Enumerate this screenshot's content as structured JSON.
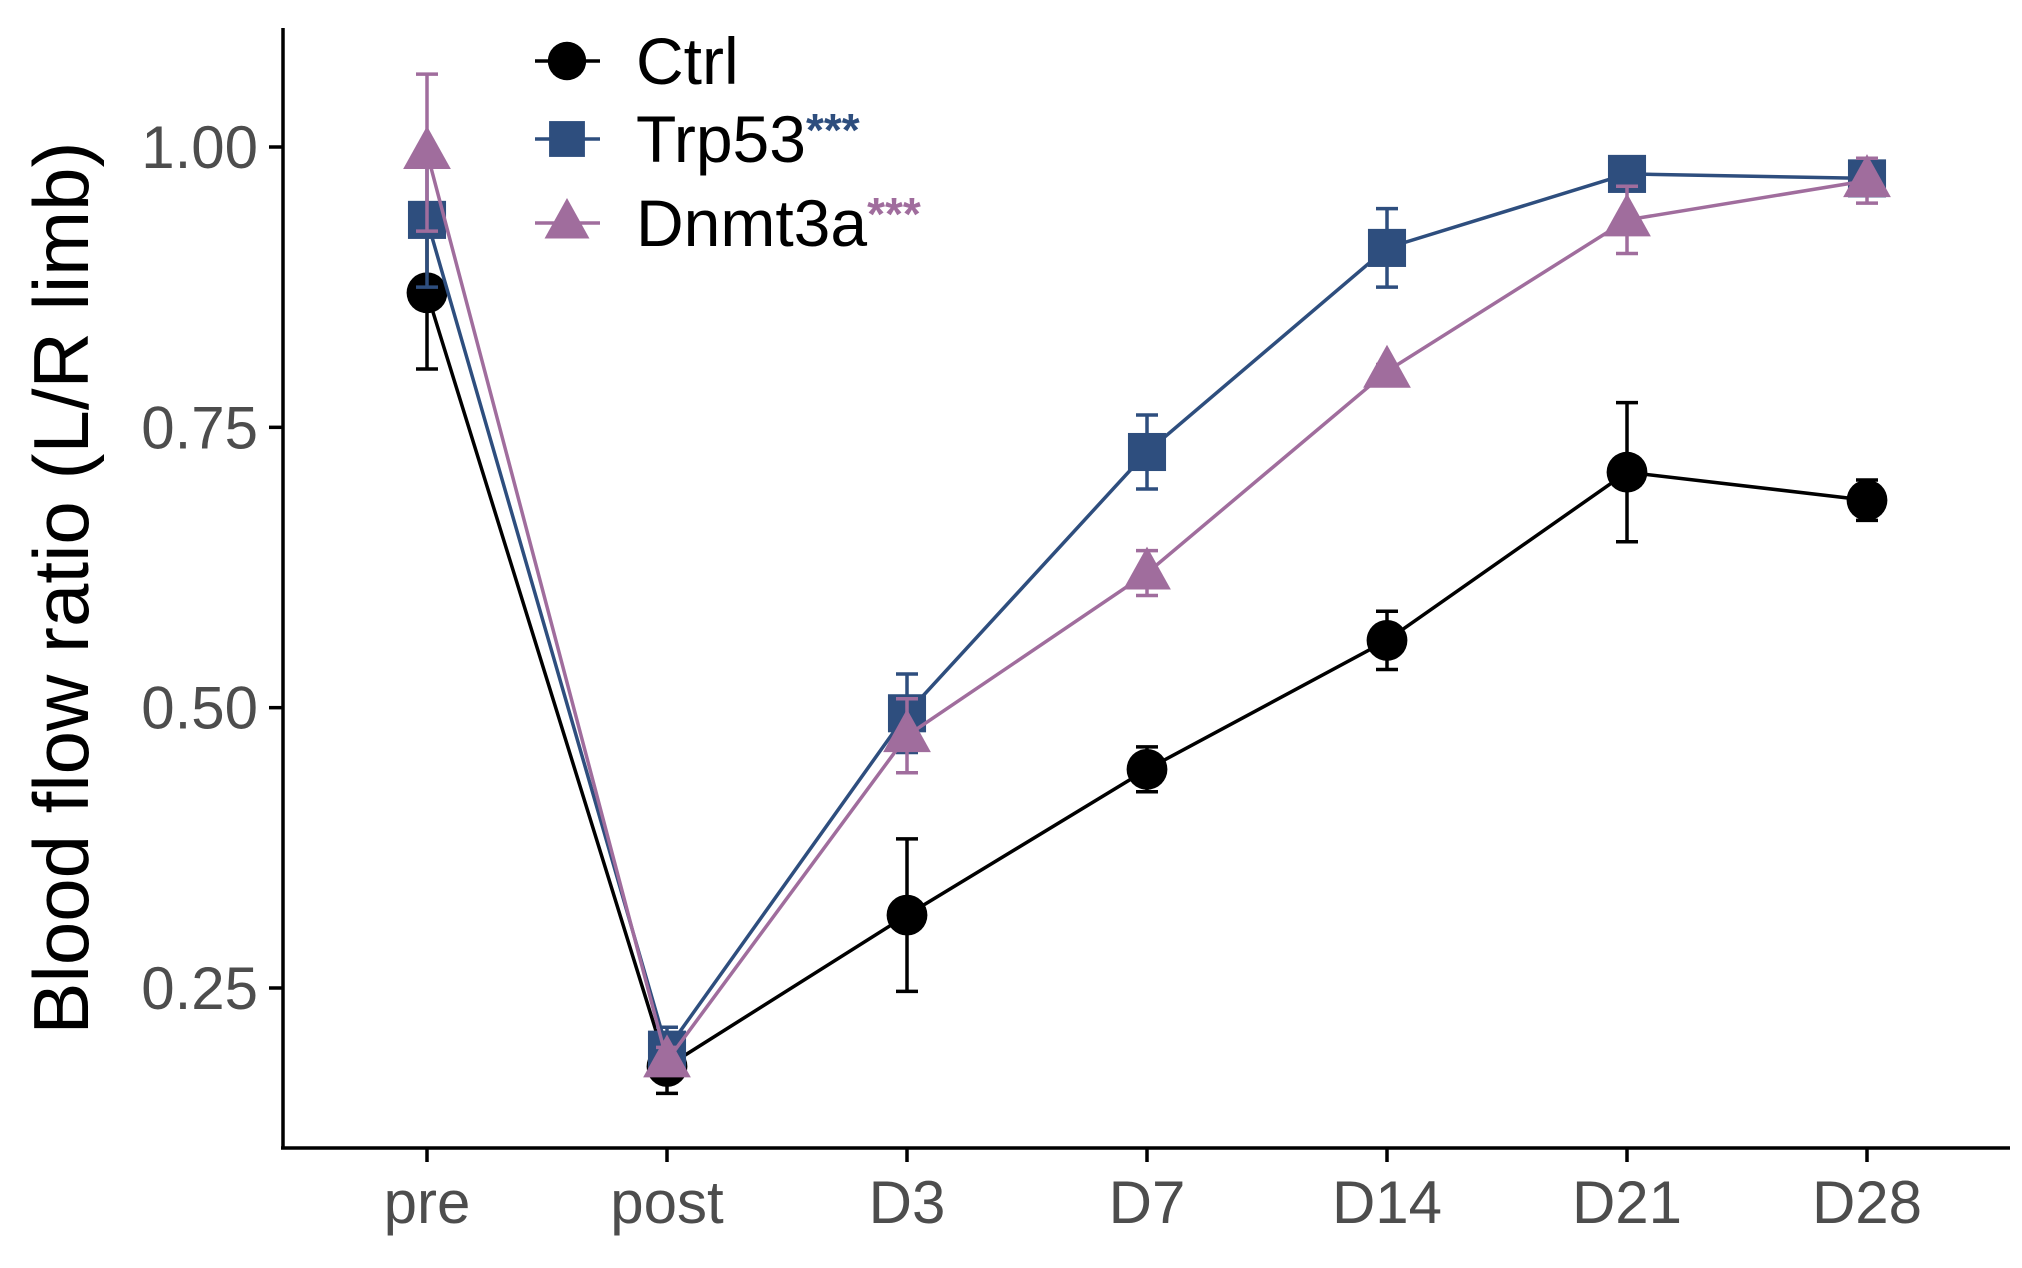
{
  "chart_data": {
    "type": "line",
    "title": "",
    "xlabel": "",
    "ylabel": "Blood flow ratio (L/R limb)",
    "categories": [
      "pre",
      "post",
      "D3",
      "D7",
      "D14",
      "D21",
      "D28"
    ],
    "yticks": [
      "0.25",
      "0.50",
      "0.75",
      "1.00"
    ],
    "ylim": [
      0.12,
      1.1
    ],
    "grid": false,
    "legend_position": "top-left",
    "series": [
      {
        "name": "Ctrl",
        "marker": "circle",
        "color": "#000000",
        "annotation": "",
        "values": [
          0.87,
          0.18,
          0.315,
          0.445,
          0.56,
          0.71,
          0.685
        ],
        "errors": [
          0.068,
          0.024,
          0.068,
          0.02,
          0.026,
          0.062,
          0.018
        ]
      },
      {
        "name": "Trp53",
        "marker": "square",
        "color": "#2e4e7e",
        "annotation": "***",
        "values": [
          0.935,
          0.195,
          0.495,
          0.728,
          0.91,
          0.976,
          0.972
        ],
        "errors": [
          0.06,
          0.02,
          0.035,
          0.033,
          0.035,
          0.012,
          0.012
        ]
      },
      {
        "name": "Dnmt3a",
        "marker": "triangle",
        "color": "#a06d9d",
        "annotation": "***",
        "values": [
          0.995,
          0.185,
          0.475,
          0.62,
          0.8,
          0.935,
          0.97
        ],
        "errors": [
          0.07,
          0.012,
          0.033,
          0.02,
          0.006,
          0.03,
          0.02
        ]
      }
    ]
  }
}
